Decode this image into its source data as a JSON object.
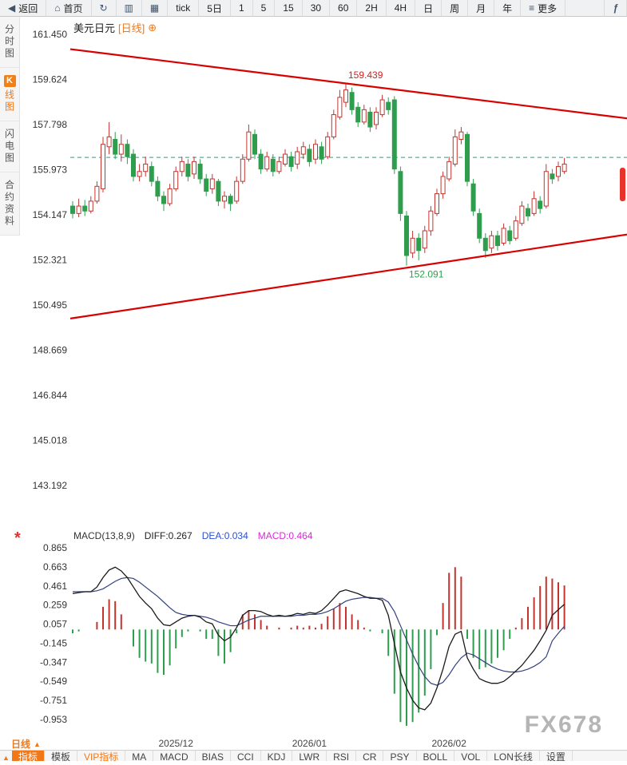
{
  "toolbar": {
    "items": [
      {
        "id": "back",
        "icon": "back-icon",
        "glyph": "◀",
        "label": "返回"
      },
      {
        "id": "home",
        "icon": "home-icon",
        "glyph": "⌂",
        "label": "首页"
      },
      {
        "id": "refresh",
        "icon": "refresh-icon",
        "glyph": "↻",
        "label": ""
      },
      {
        "id": "bar-chart",
        "icon": "bar-chart-icon",
        "glyph": "▥",
        "label": ""
      },
      {
        "id": "kline-chart",
        "icon": "kline-chart-icon",
        "glyph": "▦",
        "label": ""
      },
      {
        "id": "tick",
        "label": "tick"
      },
      {
        "id": "5d",
        "label": "5日"
      },
      {
        "id": "1m",
        "label": "1"
      },
      {
        "id": "5m",
        "label": "5"
      },
      {
        "id": "15m",
        "label": "15"
      },
      {
        "id": "30m",
        "label": "30"
      },
      {
        "id": "60m",
        "label": "60"
      },
      {
        "id": "2h",
        "label": "2H"
      },
      {
        "id": "4h",
        "label": "4H"
      },
      {
        "id": "day",
        "label": "日"
      },
      {
        "id": "week",
        "label": "周"
      },
      {
        "id": "month",
        "label": "月"
      },
      {
        "id": "year",
        "label": "年"
      },
      {
        "id": "more",
        "icon": "menu-icon",
        "glyph": "≡",
        "label": "更多"
      },
      {
        "id": "formula",
        "icon": "formula-icon",
        "glyph": "ƒ",
        "label": ""
      }
    ]
  },
  "sidebar": {
    "items": [
      {
        "id": "time-share-chart",
        "label": "分时图",
        "active": false
      },
      {
        "id": "kline-chart",
        "badge": "K",
        "label": "线图",
        "active": true
      },
      {
        "id": "flash-chart",
        "label": "闪电图",
        "active": false
      },
      {
        "id": "contract-info",
        "label": "合约资料",
        "active": false
      }
    ]
  },
  "chart_header": {
    "symbol": "美元日元",
    "period_tag": "[日线]",
    "expand_icon": "⊕"
  },
  "macd_header": {
    "marker": "*",
    "name": "MACD(13,8,9)",
    "diff": "DIFF:0.267",
    "dea": "DEA:0.034",
    "macd": "MACD:0.464"
  },
  "bottom_bar": {
    "period_label": "日线",
    "period_marker": "▲",
    "tab_marker": "▲",
    "watermark": "FX678",
    "tabs": [
      {
        "id": "indicator",
        "label": "指标",
        "active": true
      },
      {
        "id": "template",
        "label": "模板"
      },
      {
        "id": "vip-indicator",
        "label": "VIP指标",
        "accent": true
      },
      {
        "id": "ma",
        "label": "MA"
      },
      {
        "id": "macd",
        "label": "MACD"
      },
      {
        "id": "bias",
        "label": "BIAS"
      },
      {
        "id": "cci",
        "label": "CCI"
      },
      {
        "id": "kdj",
        "label": "KDJ"
      },
      {
        "id": "lwr",
        "label": "LWR"
      },
      {
        "id": "rsi",
        "label": "RSI"
      },
      {
        "id": "cr",
        "label": "CR"
      },
      {
        "id": "psy",
        "label": "PSY"
      },
      {
        "id": "boll",
        "label": "BOLL"
      },
      {
        "id": "vol",
        "label": "VOL"
      },
      {
        "id": "lon",
        "label": "LON长线"
      },
      {
        "id": "settings",
        "label": "设置"
      }
    ]
  },
  "colors": {
    "accent_orange": "#f07818",
    "up_red": "#c3342e",
    "down_green": "#2e9e4e",
    "trendline_red": "#d80000",
    "dash_teal": "#2a9d8f",
    "diff_line": "#1a1a1a",
    "dea_line": "#33427e",
    "annotation_high": "#cc2222",
    "annotation_low": "#2e9e4e"
  },
  "chart_data": {
    "type": "candlestick",
    "symbol": "美元日元",
    "period": "日线",
    "price_axis_labels": [
      "161.450",
      "159.624",
      "157.798",
      "155.973",
      "154.147",
      "152.321",
      "150.495",
      "148.669",
      "146.844",
      "145.018",
      "143.192"
    ],
    "price_axis_range": [
      143.192,
      161.45
    ],
    "candles": [
      [
        154.5,
        154.7,
        154.0,
        154.2
      ],
      [
        154.2,
        154.8,
        154.05,
        154.5
      ],
      [
        154.5,
        154.75,
        154.1,
        154.3
      ],
      [
        154.3,
        154.9,
        154.2,
        154.7
      ],
      [
        154.7,
        155.5,
        154.6,
        155.3
      ],
      [
        155.2,
        157.3,
        155.05,
        157.0
      ],
      [
        156.9,
        157.9,
        156.6,
        157.3
      ],
      [
        157.2,
        157.5,
        156.4,
        156.6
      ],
      [
        156.6,
        157.4,
        156.3,
        157.0
      ],
      [
        157.0,
        157.2,
        156.2,
        156.5
      ],
      [
        156.6,
        156.8,
        155.5,
        155.7
      ],
      [
        155.7,
        156.2,
        155.5,
        155.9
      ],
      [
        155.9,
        156.5,
        155.7,
        156.2
      ],
      [
        156.1,
        156.3,
        155.3,
        155.5
      ],
      [
        155.5,
        155.7,
        154.7,
        154.9
      ],
      [
        154.9,
        155.1,
        154.3,
        154.6
      ],
      [
        154.6,
        155.4,
        154.5,
        155.2
      ],
      [
        155.2,
        156.1,
        155.1,
        155.9
      ],
      [
        155.9,
        156.5,
        155.7,
        156.3
      ],
      [
        156.2,
        156.4,
        155.5,
        155.7
      ],
      [
        155.8,
        156.5,
        155.6,
        156.3
      ],
      [
        156.2,
        156.4,
        155.4,
        155.6
      ],
      [
        155.6,
        155.8,
        154.9,
        155.1
      ],
      [
        155.2,
        155.8,
        155.0,
        155.6
      ],
      [
        155.5,
        155.6,
        154.5,
        154.7
      ],
      [
        154.7,
        155.1,
        154.4,
        154.9
      ],
      [
        154.9,
        155.0,
        154.3,
        154.6
      ],
      [
        154.7,
        155.7,
        154.6,
        155.5
      ],
      [
        155.5,
        156.6,
        155.4,
        156.4
      ],
      [
        156.4,
        157.8,
        156.3,
        157.5
      ],
      [
        157.4,
        157.6,
        156.4,
        156.6
      ],
      [
        156.6,
        156.8,
        155.8,
        156.0
      ],
      [
        156.0,
        156.7,
        155.9,
        156.5
      ],
      [
        156.4,
        156.6,
        155.7,
        155.9
      ],
      [
        155.9,
        156.5,
        155.8,
        156.3
      ],
      [
        156.2,
        156.8,
        156.1,
        156.6
      ],
      [
        156.5,
        156.7,
        155.9,
        156.1
      ],
      [
        156.2,
        156.9,
        156.0,
        156.7
      ],
      [
        156.6,
        157.1,
        156.4,
        156.9
      ],
      [
        156.8,
        157.0,
        156.1,
        156.3
      ],
      [
        156.4,
        157.2,
        156.2,
        157.0
      ],
      [
        156.9,
        157.1,
        156.2,
        156.4
      ],
      [
        156.5,
        157.5,
        156.4,
        157.3
      ],
      [
        157.3,
        158.4,
        157.2,
        158.2
      ],
      [
        158.1,
        159.2,
        158.0,
        158.9
      ],
      [
        158.7,
        159.439,
        158.5,
        159.2
      ],
      [
        159.1,
        159.3,
        158.2,
        158.4
      ],
      [
        158.5,
        158.7,
        157.7,
        157.9
      ],
      [
        157.9,
        158.6,
        157.8,
        158.4
      ],
      [
        158.3,
        158.5,
        157.5,
        157.7
      ],
      [
        157.8,
        158.5,
        157.6,
        158.3
      ],
      [
        158.2,
        159.0,
        158.1,
        158.8
      ],
      [
        158.7,
        158.9,
        158.2,
        158.4
      ],
      [
        158.8,
        158.95,
        155.8,
        156.0
      ],
      [
        155.9,
        156.1,
        153.9,
        154.2
      ],
      [
        154.1,
        154.3,
        152.091,
        152.5
      ],
      [
        152.6,
        153.5,
        152.4,
        153.2
      ],
      [
        153.2,
        153.4,
        152.3,
        152.7
      ],
      [
        152.8,
        153.7,
        152.6,
        153.5
      ],
      [
        153.5,
        154.5,
        153.3,
        154.3
      ],
      [
        154.2,
        155.2,
        154.1,
        155.0
      ],
      [
        155.0,
        155.9,
        154.8,
        155.7
      ],
      [
        155.6,
        156.5,
        155.5,
        156.3
      ],
      [
        156.2,
        157.6,
        156.1,
        157.3
      ],
      [
        157.2,
        157.7,
        157.0,
        157.5
      ],
      [
        157.4,
        157.5,
        155.3,
        155.5
      ],
      [
        155.4,
        155.6,
        154.1,
        154.3
      ],
      [
        154.2,
        154.4,
        153.0,
        153.2
      ],
      [
        153.2,
        153.4,
        152.4,
        152.7
      ],
      [
        152.8,
        153.5,
        152.6,
        153.3
      ],
      [
        153.3,
        153.5,
        152.7,
        152.9
      ],
      [
        153.0,
        153.8,
        152.9,
        153.6
      ],
      [
        153.5,
        153.7,
        152.95,
        153.1
      ],
      [
        153.2,
        154.1,
        153.1,
        153.9
      ],
      [
        153.8,
        154.7,
        153.7,
        154.5
      ],
      [
        154.4,
        154.6,
        153.9,
        154.1
      ],
      [
        154.2,
        155.1,
        154.1,
        154.8
      ],
      [
        154.7,
        154.9,
        154.2,
        154.4
      ],
      [
        154.5,
        156.2,
        154.4,
        155.9
      ],
      [
        155.8,
        156.0,
        155.4,
        155.6
      ],
      [
        155.7,
        156.3,
        155.5,
        156.1
      ],
      [
        155.9,
        156.45,
        155.8,
        156.2
      ]
    ],
    "x_ticks": [
      {
        "index": 17,
        "label": "2025/12"
      },
      {
        "index": 39,
        "label": "2026/01"
      },
      {
        "index": 62,
        "label": "2026/02"
      }
    ],
    "annotations": [
      {
        "index": 45,
        "text": "159.439",
        "position": "above"
      },
      {
        "index": 55,
        "text": "152.091",
        "position": "below"
      }
    ],
    "trendlines": [
      {
        "price_left": 160.85,
        "price_right": 158.05
      },
      {
        "price_left": 149.95,
        "price_right": 153.35
      }
    ],
    "last_price_line": 156.47,
    "macd": {
      "params": "MACD(13,8,9)",
      "diff_value": 0.267,
      "dea_value": 0.034,
      "macd_value": 0.464,
      "axis_labels": [
        "0.865",
        "0.663",
        "0.461",
        "0.259",
        "0.057",
        "-0.145",
        "-0.347",
        "-0.549",
        "-0.751",
        "-0.953"
      ],
      "axis_range": [
        -0.953,
        0.865
      ],
      "diff": [
        0.38,
        0.39,
        0.4,
        0.4,
        0.45,
        0.55,
        0.63,
        0.66,
        0.62,
        0.55,
        0.45,
        0.35,
        0.28,
        0.22,
        0.12,
        0.05,
        0.04,
        0.08,
        0.12,
        0.14,
        0.15,
        0.13,
        0.08,
        0.06,
        -0.06,
        -0.12,
        -0.08,
        0.02,
        0.15,
        0.2,
        0.2,
        0.19,
        0.16,
        0.14,
        0.15,
        0.14,
        0.15,
        0.17,
        0.16,
        0.18,
        0.17,
        0.2,
        0.26,
        0.33,
        0.4,
        0.42,
        0.4,
        0.38,
        0.35,
        0.33,
        0.33,
        0.31,
        0.15,
        -0.15,
        -0.45,
        -0.62,
        -0.75,
        -0.83,
        -0.85,
        -0.78,
        -0.62,
        -0.42,
        -0.18,
        -0.05,
        -0.02,
        -0.3,
        -0.42,
        -0.52,
        -0.55,
        -0.57,
        -0.57,
        -0.55,
        -0.5,
        -0.44,
        -0.38,
        -0.3,
        -0.22,
        -0.12,
        -0.01,
        0.15,
        0.21,
        0.267
      ],
      "dea": [
        0.4,
        0.4,
        0.4,
        0.4,
        0.41,
        0.43,
        0.47,
        0.51,
        0.54,
        0.55,
        0.54,
        0.5,
        0.45,
        0.4,
        0.35,
        0.29,
        0.23,
        0.18,
        0.16,
        0.15,
        0.15,
        0.14,
        0.13,
        0.11,
        0.08,
        0.06,
        0.04,
        0.04,
        0.07,
        0.1,
        0.12,
        0.14,
        0.14,
        0.14,
        0.14,
        0.14,
        0.14,
        0.15,
        0.15,
        0.16,
        0.16,
        0.17,
        0.19,
        0.22,
        0.26,
        0.3,
        0.32,
        0.33,
        0.34,
        0.34,
        0.33,
        0.33,
        0.29,
        0.19,
        0.04,
        -0.11,
        -0.26,
        -0.39,
        -0.5,
        -0.57,
        -0.59,
        -0.56,
        -0.48,
        -0.38,
        -0.3,
        -0.25,
        -0.27,
        -0.31,
        -0.35,
        -0.39,
        -0.42,
        -0.44,
        -0.45,
        -0.45,
        -0.44,
        -0.42,
        -0.39,
        -0.35,
        -0.29,
        -0.12,
        -0.04,
        0.034
      ]
    }
  }
}
